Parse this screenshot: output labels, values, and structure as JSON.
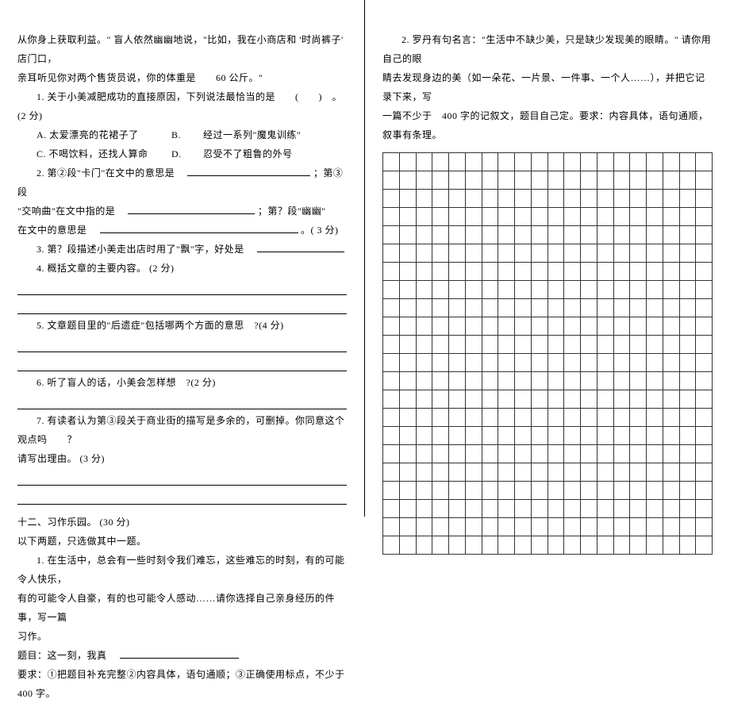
{
  "left": {
    "intro1": "从你身上获取利益。\" 盲人依然幽幽地说，\"比如，我在小商店和 '时尚裤子' 店门口，",
    "intro2": "亲耳听见你对两个售货员说，你的体重是　　60 公斤。\"",
    "q1": "1. 关于小美减肥成功的直接原因，下列说法最恰当的是　　(　　)　。(2 分)",
    "q1a": "A. 太爱漂亮的花裙子了",
    "q1bLabel": "B.",
    "q1b": "经过一系列\"魔鬼训练\"",
    "q1c": "C. 不喝饮料，还找人算命",
    "q1dLabel": "D.",
    "q1d": "忍受不了粗鲁的外号",
    "q2a": "2. 第②段\"卡门\"在文中的意思是　",
    "q2b": "；第③段",
    "q2c": "\"交响曲\"在文中指的是　",
    "q2d": "；第？段\"幽幽\"",
    "q2e": "在文中的意思是　",
    "q2f": "。( 3 分)",
    "q3a": "3. 第？段描述小美走出店时用了\"飘\"字，好处是　",
    "q4": "4. 概括文章的主要内容。 (2 分)",
    "q5": "5. 文章题目里的\"后遗症\"包括哪两个方面的意思　?(4 分)",
    "q6": "6. 听了盲人的话，小美会怎样想　?(2 分)",
    "q7a": "7. 有读者认为第③段关于商业街的描写是多余的，可删掉。你同意这个观点吗　　？",
    "q7b": "请写出理由。 (3 分)",
    "section": "十二、习作乐园。 (30 分)",
    "pick": "以下两题，只选做其中一题。",
    "essay1a": "1. 在生活中，总会有一些时刻令我们难忘，这些难忘的时刻，有的可能令人快乐，",
    "essay1b": "有的可能令人自豪，有的也可能令人感动……请你选择自己亲身经历的件事，写一篇",
    "essay1c": "习作。",
    "essay1d": "题目：这一刻，我真　",
    "essay1e": "要求：①把题目补充完整②内容具体，语句通顺；③正确使用标点，不少于　　400 字。"
  },
  "right": {
    "essay2a": "2. 罗丹有句名言：\"生活中不缺少美，只是缺少发现美的眼睛。\" 请你用自己的眼",
    "essay2b": "睛去发现身边的美（如一朵花、一片景、一件事、一个人……），并把它记录下来，写",
    "essay2c": "一篇不少于　400 字的记叙文，题目自己定。要求：内容具体，语句通顺，叙事有条理。"
  },
  "grid": {
    "rows": 22,
    "cols": 20
  }
}
